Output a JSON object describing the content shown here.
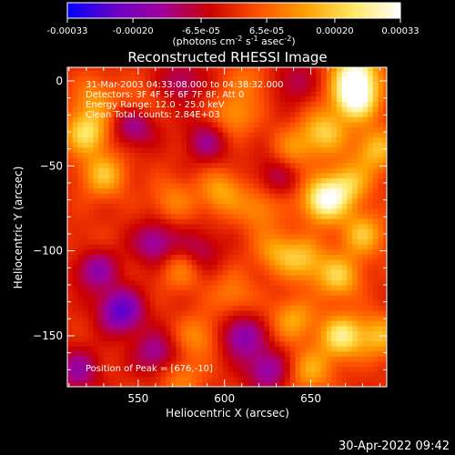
{
  "colorbar": {
    "tick_labels": [
      "-0.00033",
      "-0.00020",
      "-6.5e-05",
      "6.5e-05",
      "0.00020",
      "0.00033"
    ],
    "tick_values": [
      -0.00033,
      -0.0002,
      -6.5e-05,
      6.5e-05,
      0.0002,
      0.00033
    ],
    "range": [
      -0.00033,
      0.00033
    ],
    "unit_base": "(photons cm",
    "unit_exp1": "-2",
    "unit_mid": " s",
    "unit_exp2": "-1",
    "unit_mid2": " asec",
    "unit_exp3": "-2",
    "unit_end": ")",
    "colors": [
      "#0000ff",
      "#6a00c8",
      "#a0009a",
      "#cc0000",
      "#ff5000",
      "#ffa000",
      "#ffe860",
      "#ffffff"
    ]
  },
  "chart_data": {
    "type": "heatmap",
    "title": "Reconstructed RHESSI Image",
    "xlabel": "Heliocentric X (arcsec)",
    "ylabel": "Heliocentric Y (arcsec)",
    "xlim": [
      509,
      694
    ],
    "ylim": [
      -180,
      8
    ],
    "x_ticks": [
      550,
      600,
      650
    ],
    "x_tick_labels": [
      "550",
      "600",
      "650"
    ],
    "y_ticks": [
      0,
      -50,
      -100,
      -150
    ],
    "y_tick_labels": [
      "0",
      "−50",
      "−100",
      "−150"
    ],
    "annotations": [
      "31-Mar-2003 04:33:08.000 to 04:38:32.000",
      "Detectors: 3F 4F 5F 6F 7F 8F, Att 0",
      "Energy Range: 12.0 - 25.0 keV",
      "Clean     Total counts: 2.84E+03"
    ],
    "peak_label": "Position of Peak = [676,-10]",
    "peak": [
      676,
      -10
    ],
    "blobs": [
      {
        "x": 676,
        "y": -10,
        "v": 1.0
      },
      {
        "x": 676,
        "y": 5,
        "v": 0.85
      },
      {
        "x": 658,
        "y": -30,
        "v": 0.6
      },
      {
        "x": 688,
        "y": -40,
        "v": 0.55
      },
      {
        "x": 658,
        "y": -70,
        "v": 0.95
      },
      {
        "x": 672,
        "y": -60,
        "v": 0.55
      },
      {
        "x": 680,
        "y": -90,
        "v": 0.55
      },
      {
        "x": 666,
        "y": -115,
        "v": 0.6
      },
      {
        "x": 646,
        "y": -105,
        "v": 0.5
      },
      {
        "x": 668,
        "y": -150,
        "v": 0.75
      },
      {
        "x": 690,
        "y": -150,
        "v": 0.5
      },
      {
        "x": 640,
        "y": -140,
        "v": 0.45
      },
      {
        "x": 650,
        "y": -170,
        "v": 0.45
      },
      {
        "x": 630,
        "y": -100,
        "v": 0.4
      },
      {
        "x": 640,
        "y": -40,
        "v": 0.35
      },
      {
        "x": 605,
        "y": -20,
        "v": 0.4
      },
      {
        "x": 598,
        "y": -65,
        "v": 0.45
      },
      {
        "x": 620,
        "y": -75,
        "v": 0.35
      },
      {
        "x": 605,
        "y": -125,
        "v": 0.3
      },
      {
        "x": 585,
        "y": -150,
        "v": 0.35
      },
      {
        "x": 575,
        "y": -110,
        "v": 0.35
      },
      {
        "x": 570,
        "y": -70,
        "v": 0.3
      },
      {
        "x": 520,
        "y": -30,
        "v": 0.7
      },
      {
        "x": 530,
        "y": -55,
        "v": 0.55
      },
      {
        "x": 525,
        "y": -10,
        "v": 0.35
      },
      {
        "x": 550,
        "y": -15,
        "v": 0.3
      },
      {
        "x": 520,
        "y": -100,
        "v": 0.15
      },
      {
        "x": 575,
        "y": -175,
        "v": 0.3
      },
      {
        "x": 615,
        "y": 0,
        "v": 0.25
      },
      {
        "x": 540,
        "y": -135,
        "v": -0.75
      },
      {
        "x": 525,
        "y": -110,
        "v": -0.55
      },
      {
        "x": 560,
        "y": -95,
        "v": -0.5
      },
      {
        "x": 548,
        "y": -25,
        "v": -0.55
      },
      {
        "x": 590,
        "y": -35,
        "v": -0.4
      },
      {
        "x": 610,
        "y": -150,
        "v": -0.55
      },
      {
        "x": 560,
        "y": -160,
        "v": -0.45
      },
      {
        "x": 515,
        "y": -170,
        "v": -0.45
      },
      {
        "x": 625,
        "y": -170,
        "v": -0.5
      },
      {
        "x": 585,
        "y": -100,
        "v": -0.35
      },
      {
        "x": 630,
        "y": -55,
        "v": -0.3
      },
      {
        "x": 640,
        "y": 0,
        "v": -0.3
      },
      {
        "x": 575,
        "y": 0,
        "v": -0.35
      }
    ]
  },
  "footer": {
    "timestamp": "30-Apr-2022 09:42"
  }
}
